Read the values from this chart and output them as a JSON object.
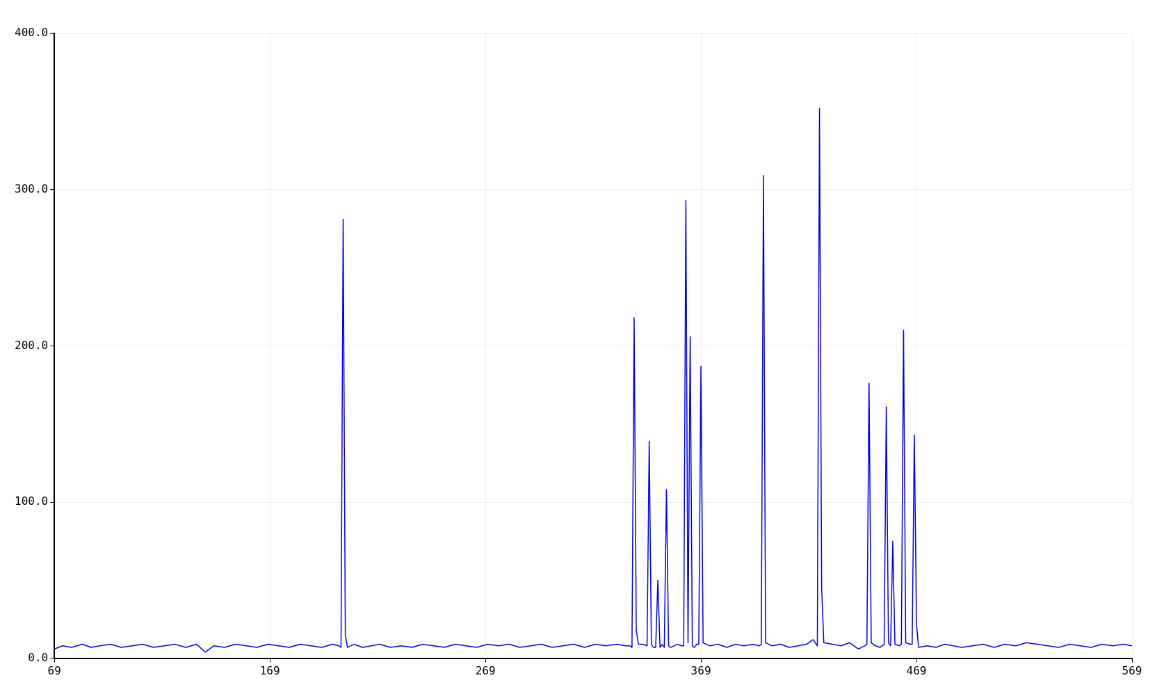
{
  "chart_data": {
    "type": "line",
    "x": [
      69,
      73,
      77,
      82,
      86,
      90,
      95,
      100,
      105,
      110,
      115,
      120,
      125,
      130,
      135,
      139,
      143,
      148,
      153,
      158,
      163,
      168,
      173,
      178,
      183,
      188,
      193,
      198,
      201,
      202,
      203,
      204,
      205,
      208,
      212,
      216,
      220,
      225,
      230,
      235,
      240,
      245,
      250,
      255,
      260,
      265,
      270,
      275,
      280,
      285,
      290,
      295,
      300,
      305,
      310,
      315,
      320,
      325,
      330,
      334,
      336,
      337,
      338,
      339,
      340,
      342,
      344,
      345,
      346,
      347,
      348,
      349,
      350,
      351,
      352,
      353,
      354,
      355,
      358,
      360,
      361,
      362,
      363,
      364,
      365,
      366,
      367,
      368,
      369,
      370,
      373,
      377,
      381,
      385,
      389,
      393,
      396,
      397,
      398,
      399,
      402,
      406,
      410,
      414,
      418,
      421,
      423,
      424,
      425,
      426,
      430,
      434,
      438,
      442,
      445,
      446,
      447,
      448,
      450,
      452,
      454,
      455,
      456,
      457,
      458,
      459,
      461,
      462,
      463,
      464,
      466,
      467,
      468,
      469,
      470,
      474,
      478,
      482,
      486,
      490,
      495,
      500,
      505,
      510,
      515,
      520,
      525,
      530,
      535,
      540,
      545,
      550,
      555,
      560,
      565,
      569
    ],
    "values": [
      6,
      8,
      7,
      9,
      7,
      8,
      9,
      7,
      8,
      9,
      7,
      8,
      9,
      7,
      9,
      4,
      8,
      7,
      9,
      8,
      7,
      9,
      8,
      7,
      9,
      8,
      7,
      9,
      8,
      7,
      281,
      15,
      7,
      9,
      7,
      8,
      9,
      7,
      8,
      7,
      9,
      8,
      7,
      9,
      8,
      7,
      9,
      8,
      9,
      7,
      8,
      9,
      7,
      8,
      9,
      7,
      9,
      8,
      9,
      8,
      8,
      7,
      218,
      18,
      9,
      9,
      8,
      139,
      9,
      7,
      7,
      50,
      7,
      9,
      7,
      108,
      8,
      7,
      9,
      8,
      8,
      293,
      10,
      206,
      8,
      7,
      9,
      9,
      187,
      10,
      8,
      9,
      7,
      9,
      8,
      9,
      8,
      9,
      309,
      10,
      8,
      9,
      7,
      8,
      9,
      12,
      8,
      352,
      45,
      10,
      9,
      8,
      10,
      6,
      8,
      9,
      176,
      10,
      8,
      7,
      9,
      161,
      10,
      8,
      75,
      9,
      8,
      9,
      210,
      10,
      9,
      9,
      143,
      22,
      7,
      8,
      7,
      9,
      8,
      7,
      8,
      9,
      7,
      9,
      8,
      10,
      9,
      8,
      7,
      9,
      8,
      7,
      9,
      8,
      9,
      8
    ],
    "color": "#0000ee",
    "xlim": [
      69,
      569
    ],
    "xticks": [
      69,
      169,
      269,
      369,
      469,
      569
    ],
    "ylim": [
      0,
      400
    ],
    "yticks": [
      {
        "value": 0,
        "label": "0.0"
      },
      {
        "value": 100,
        "label": "100.0"
      },
      {
        "value": 200,
        "label": "200.0"
      },
      {
        "value": 300,
        "label": "300.0"
      },
      {
        "value": 400,
        "label": "400.0"
      }
    ],
    "grid": true,
    "marker": "none",
    "line_style": "solid"
  }
}
